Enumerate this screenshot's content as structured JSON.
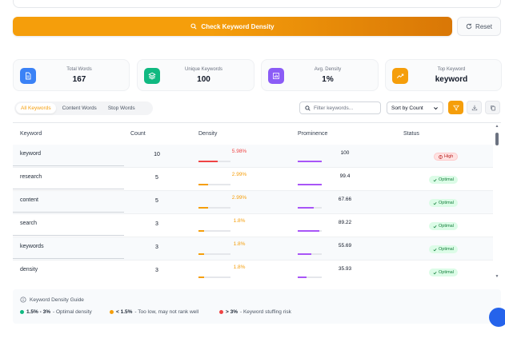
{
  "actions": {
    "check_label": "Check Keyword Density",
    "reset_label": "Reset"
  },
  "stats": [
    {
      "label": "Total Words",
      "value": "167",
      "icon": "document-icon",
      "color": "#3b82f6"
    },
    {
      "label": "Unique Keywords",
      "value": "100",
      "icon": "layers-icon",
      "color": "#10b981"
    },
    {
      "label": "Avg. Density",
      "value": "1%",
      "icon": "bar-chart-icon",
      "color": "#8b5cf6"
    },
    {
      "label": "Top Keyword",
      "value": "keyword",
      "icon": "trending-up-icon",
      "color": "#f59e0b"
    }
  ],
  "tabs": [
    {
      "label": "All Keywords",
      "active": true
    },
    {
      "label": "Content Words",
      "active": false
    },
    {
      "label": "Stop Words",
      "active": false
    }
  ],
  "filter": {
    "placeholder": "Filter keywords..."
  },
  "sort": {
    "selected": "Sort by Count"
  },
  "table": {
    "headers": {
      "keyword": "Keyword",
      "count": "Count",
      "density": "Density",
      "prominence": "Prominence",
      "status": "Status"
    },
    "rows": [
      {
        "keyword": "keyword",
        "count": "10",
        "density": "5.98%",
        "density_pct": 0.6,
        "prominence": "100",
        "prominence_pct": 1.0,
        "status": "High",
        "status_type": "high"
      },
      {
        "keyword": "research",
        "count": "5",
        "density": "2.99%",
        "density_pct": 0.3,
        "prominence": "99.4",
        "prominence_pct": 0.99,
        "status": "Optimal",
        "status_type": "optimal"
      },
      {
        "keyword": "content",
        "count": "5",
        "density": "2.99%",
        "density_pct": 0.3,
        "prominence": "67.66",
        "prominence_pct": 0.68,
        "status": "Optimal",
        "status_type": "optimal"
      },
      {
        "keyword": "search",
        "count": "3",
        "density": "1.8%",
        "density_pct": 0.18,
        "prominence": "89.22",
        "prominence_pct": 0.89,
        "status": "Optimal",
        "status_type": "optimal"
      },
      {
        "keyword": "keywords",
        "count": "3",
        "density": "1.8%",
        "density_pct": 0.18,
        "prominence": "55.69",
        "prominence_pct": 0.56,
        "status": "Optimal",
        "status_type": "optimal"
      },
      {
        "keyword": "density",
        "count": "3",
        "density": "1.8%",
        "density_pct": 0.18,
        "prominence": "35.93",
        "prominence_pct": 0.36,
        "status": "Optimal",
        "status_type": "optimal"
      }
    ]
  },
  "guide": {
    "title": "Keyword Density Guide",
    "items": [
      {
        "range": "1.5% - 3%",
        "text": "- Optimal density",
        "color": "#10b981"
      },
      {
        "range": "< 1.5%",
        "text": "- Too low, may not rank well",
        "color": "#f59e0b"
      },
      {
        "range": "> 3%",
        "text": "- Keyword stuffing risk",
        "color": "#ef4444"
      }
    ]
  },
  "colors": {
    "accent": "#f59e0b",
    "high": "#ef4444",
    "optimal": "#10b981",
    "prominence": "#a855f7"
  }
}
